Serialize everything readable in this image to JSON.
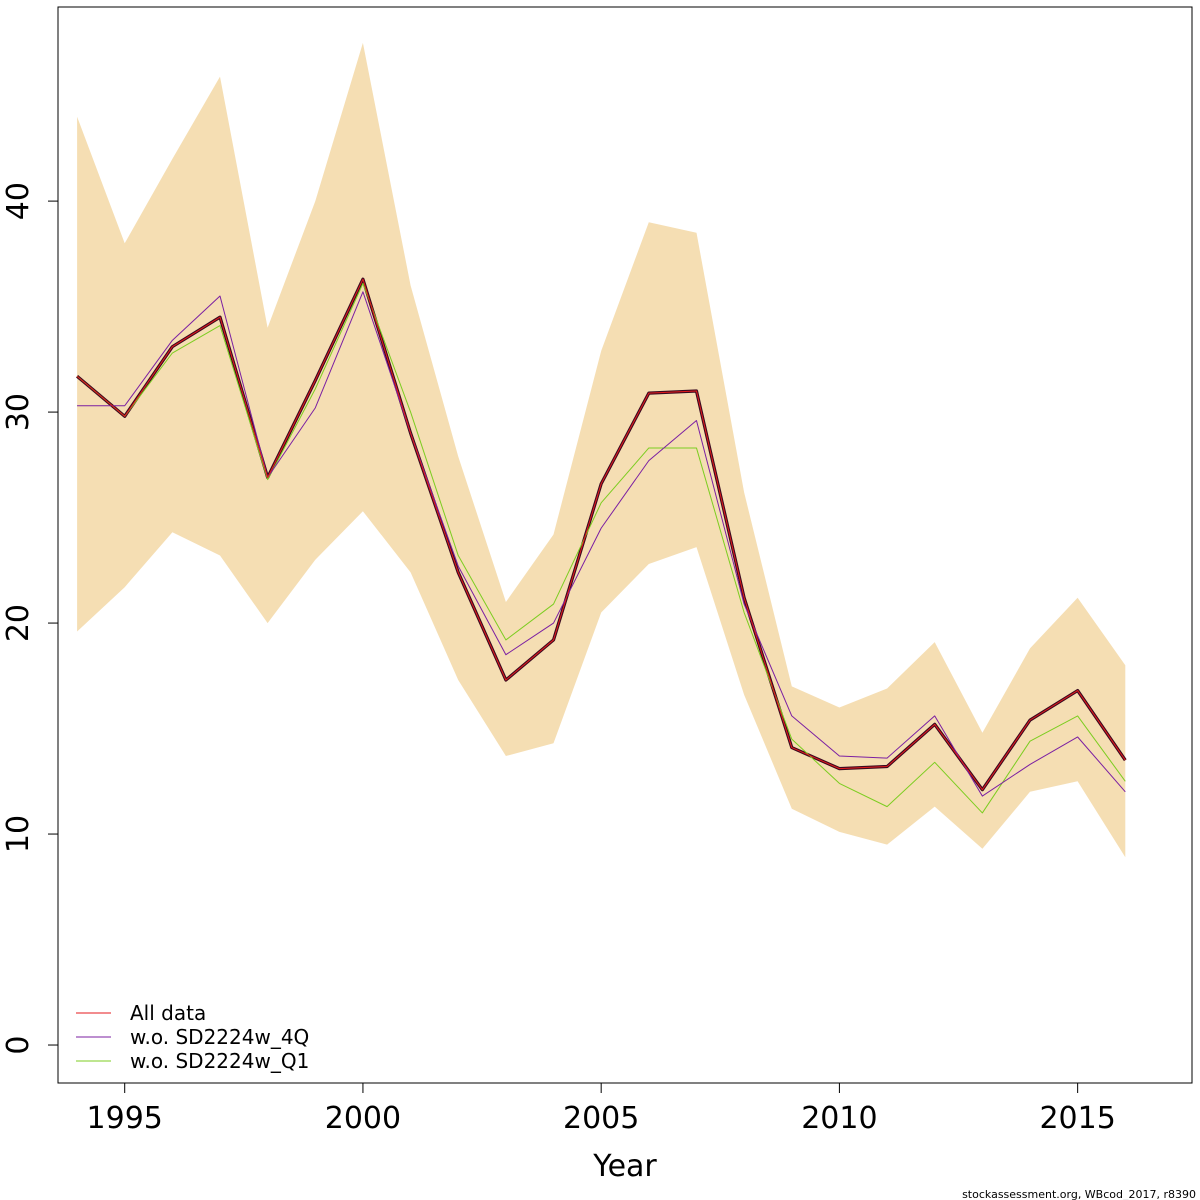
{
  "chart_data": {
    "type": "line",
    "xlabel": "Year",
    "ylabel": "",
    "xlim": [
      1993.6,
      2017.4
    ],
    "ylim": [
      -1.8,
      49.2
    ],
    "x_ticks": [
      1995,
      2000,
      2005,
      2010,
      2015
    ],
    "y_ticks": [
      0,
      10,
      20,
      30,
      40
    ],
    "grid": false,
    "legend_position": "bottom-left",
    "x": [
      1994,
      1995,
      1996,
      1997,
      1998,
      1999,
      2000,
      2001,
      2002,
      2003,
      2004,
      2005,
      2006,
      2007,
      2008,
      2009,
      2010,
      2011,
      2012,
      2013,
      2014,
      2015,
      2016
    ],
    "band": {
      "color": "#f5deb3",
      "upper": [
        44.0,
        38.0,
        42.0,
        45.9,
        34.0,
        40.0,
        47.5,
        36.0,
        27.9,
        21.0,
        24.2,
        32.9,
        39.0,
        38.5,
        26.2,
        17.0,
        16.0,
        16.9,
        19.1,
        14.8,
        18.8,
        21.2,
        18.0
      ],
      "lower": [
        19.6,
        21.7,
        24.3,
        23.2,
        20.0,
        23.0,
        25.3,
        22.4,
        17.3,
        13.7,
        14.3,
        20.5,
        22.8,
        23.6,
        16.6,
        11.2,
        10.1,
        9.5,
        11.3,
        9.3,
        12.0,
        12.5,
        8.9
      ]
    },
    "series": [
      {
        "name": "All data",
        "color": "#e41a1c",
        "values": [
          31.7,
          29.8,
          33.1,
          34.5,
          26.9,
          31.5,
          36.3,
          29.0,
          22.4,
          17.3,
          19.2,
          26.6,
          30.9,
          31.0,
          21.2,
          14.1,
          13.1,
          13.2,
          15.2,
          12.1,
          15.4,
          16.8,
          13.5
        ]
      },
      {
        "name": "w.o. SD2224w_4Q",
        "color": "#7b1fa2",
        "values": [
          30.3,
          30.3,
          33.4,
          35.5,
          26.9,
          30.2,
          35.7,
          29.0,
          22.7,
          18.5,
          20.0,
          24.5,
          27.7,
          29.6,
          20.9,
          15.6,
          13.7,
          13.6,
          15.6,
          11.8,
          13.3,
          14.6,
          12.0
        ]
      },
      {
        "name": "w.o. SD2224w_Q1",
        "color": "#7ccd20",
        "values": [
          31.7,
          29.8,
          32.8,
          34.1,
          26.8,
          31.1,
          36.1,
          30.0,
          23.2,
          19.2,
          20.9,
          25.7,
          28.3,
          28.3,
          20.5,
          14.5,
          12.4,
          11.3,
          13.4,
          11.0,
          14.4,
          15.6,
          12.5
        ]
      }
    ],
    "highlight": {
      "series": "All data",
      "color": "#3a0a20"
    }
  },
  "footer": {
    "note": "stockassessment.org, WBcod_2017, r8390"
  }
}
